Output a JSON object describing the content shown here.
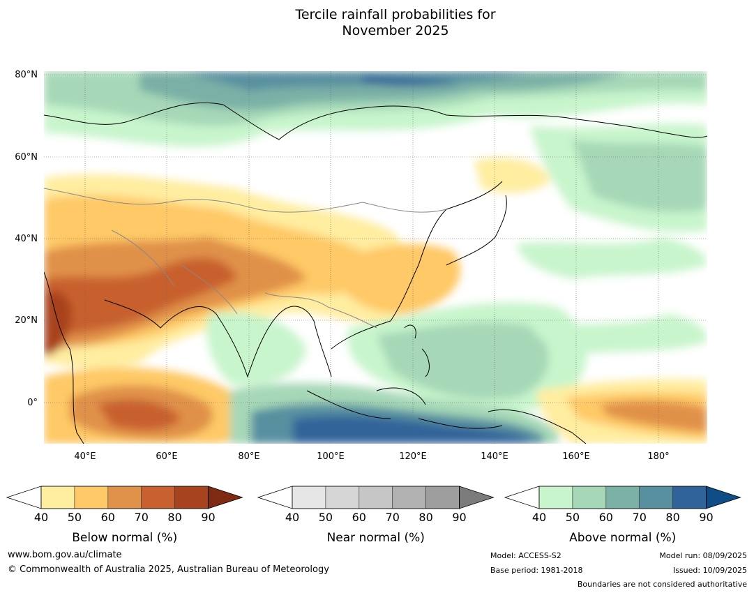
{
  "title": {
    "line1": "Tercile rainfall probabilities for",
    "line2": "November 2025"
  },
  "map": {
    "lat_labels": [
      "80°N",
      "60°N",
      "40°N",
      "20°N",
      "0°"
    ],
    "lon_labels": [
      "40°E",
      "60°E",
      "80°E",
      "100°E",
      "120°E",
      "140°E",
      "160°E",
      "180°"
    ]
  },
  "colorbars": [
    {
      "name": "below",
      "label": "Below normal (%)",
      "ticks": [
        "40",
        "50",
        "60",
        "70",
        "80",
        "90"
      ],
      "colors": [
        "#ffffff",
        "#ffeda0",
        "#fec966",
        "#e0914a",
        "#c8602f",
        "#a8431f",
        "#7f2a13"
      ]
    },
    {
      "name": "near",
      "label": "Near normal (%)",
      "ticks": [
        "40",
        "50",
        "60",
        "70",
        "80",
        "90"
      ],
      "colors": [
        "#ffffff",
        "#e6e6e6",
        "#d6d6d6",
        "#c6c6c6",
        "#b1b1b1",
        "#9e9e9e",
        "#7b7b7b"
      ]
    },
    {
      "name": "above",
      "label": "Above normal (%)",
      "ticks": [
        "40",
        "50",
        "60",
        "70",
        "80",
        "90"
      ],
      "colors": [
        "#ffffff",
        "#c8f5cc",
        "#a6d8b7",
        "#7ab0a6",
        "#5890a0",
        "#306399",
        "#104c85"
      ]
    }
  ],
  "footer": {
    "website": "www.bom.gov.au/climate",
    "copyright": "© Commonwealth of Australia 2025, Australian Bureau of Meteorology",
    "model": "Model: ACCESS-S2",
    "base_period": "Base period: 1981-2018",
    "model_run": "Model run: 08/09/2025",
    "issued": "Issued: 10/09/2025",
    "disclaimer": "Boundaries are not considered authoritative"
  }
}
